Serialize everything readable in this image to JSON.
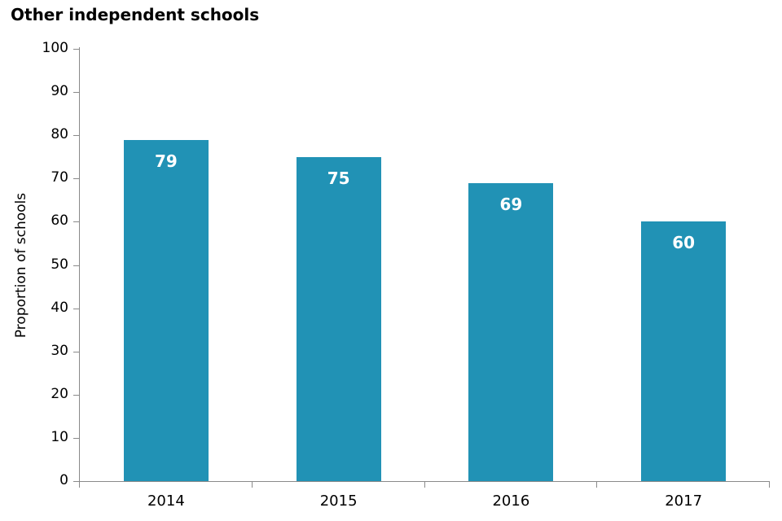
{
  "chart_data": {
    "type": "bar",
    "title": "Other independent schools",
    "categories": [
      "2014",
      "2015",
      "2016",
      "2017"
    ],
    "values": [
      79,
      75,
      69,
      60
    ],
    "data_labels": [
      "79",
      "75",
      "69",
      "60"
    ],
    "xlabel": "",
    "ylabel": "Proportion of schools",
    "ylim": [
      0,
      100
    ],
    "yticks": [
      0,
      10,
      20,
      30,
      40,
      50,
      60,
      70,
      80,
      90,
      100
    ],
    "grid": false,
    "legend": "none",
    "bar_color": "#2192b5",
    "data_label_color": "#ffffff",
    "axis_color": "#8a8a8a",
    "text_color": "#000000"
  }
}
